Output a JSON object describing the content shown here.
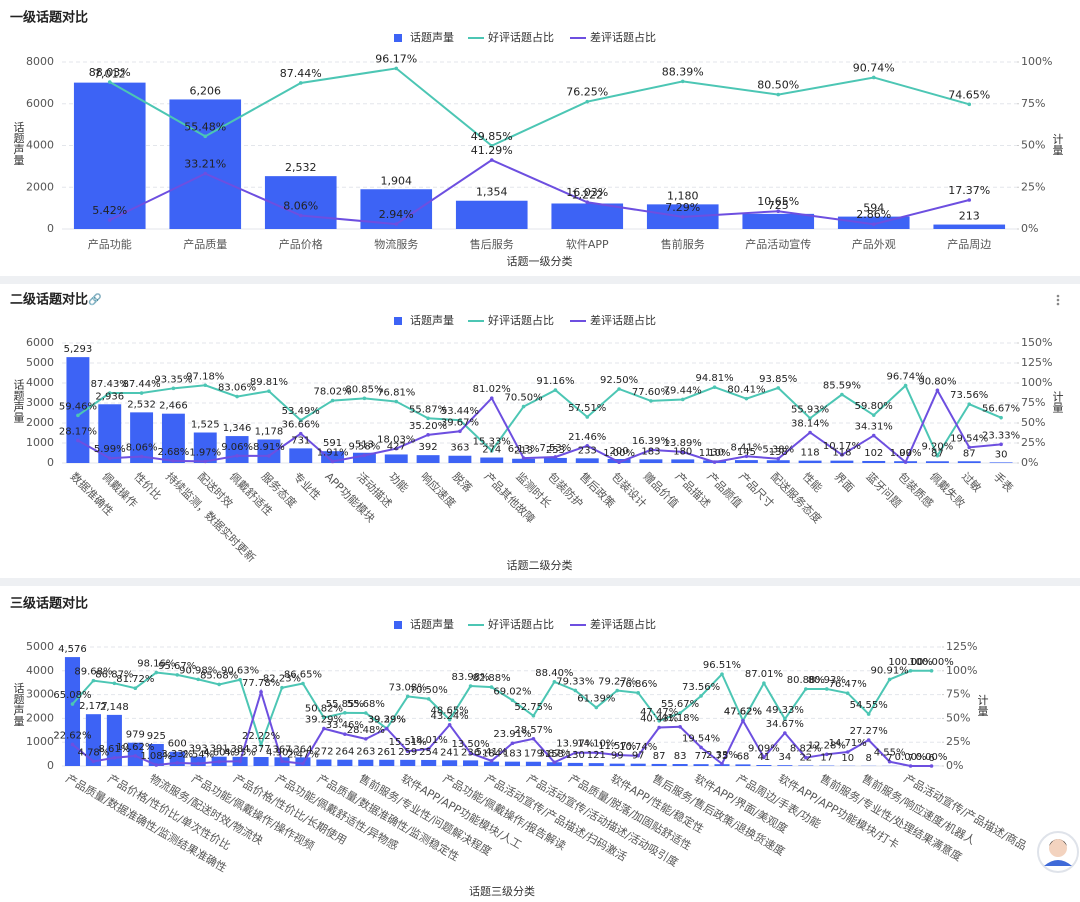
{
  "chart_data": [
    {
      "type": "combo",
      "title": "一级话题对比",
      "x_label": "话题一级分类",
      "y_label": "话题声量",
      "y2_label": "计量",
      "grid": true,
      "legend": "top",
      "categories": [
        "产品功能",
        "产品质量",
        "产品价格",
        "物流服务",
        "售后服务",
        "软件APP",
        "售前服务",
        "产品活动宣传",
        "产品外观",
        "产品周边"
      ],
      "series": [
        {
          "name": "话题声量",
          "type": "bar",
          "color": "#3d63f5",
          "values": [
            7012,
            6206,
            2532,
            1904,
            1354,
            1222,
            1180,
            725,
            594,
            213
          ],
          "value_labels": [
            "7,012",
            "6,206",
            "2,532",
            "1,904",
            "1,354",
            "1,222",
            "1,180",
            "725",
            "594",
            "213"
          ]
        },
        {
          "name": "好评话题占比",
          "type": "line",
          "axis": "y2",
          "color": "#4cc6b4",
          "values": [
            88.03,
            55.48,
            87.44,
            96.17,
            49.85,
            76.25,
            88.39,
            80.5,
            90.74,
            74.65
          ],
          "value_labels": [
            "88.03%",
            "55.48%",
            "87.44%",
            "96.17%",
            "49.85%",
            "76.25%",
            "88.39%",
            "80.50%",
            "90.74%",
            "74.65%"
          ]
        },
        {
          "name": "差评话题占比",
          "type": "line",
          "axis": "y2",
          "color": "#6d4fe0",
          "values": [
            5.42,
            33.21,
            8.06,
            2.94,
            41.29,
            16.03,
            7.29,
            10.65,
            2.86,
            17.37
          ],
          "value_labels": [
            "5.42%",
            "33.21%",
            "8.06%",
            "2.94%",
            "41.29%",
            "16.03%",
            "7.29%",
            "10.65%",
            "2.86%",
            "17.37%"
          ]
        }
      ],
      "ylim": [
        0,
        8000
      ],
      "yticks": [
        0,
        2000,
        4000,
        6000,
        8000
      ],
      "y2lim": [
        0,
        100
      ],
      "y2ticks": [
        {
          "value": 0,
          "label": "0%"
        },
        {
          "value": 25,
          "label": "25%"
        },
        {
          "value": 50,
          "label": "50%"
        },
        {
          "value": 75,
          "label": "75%"
        },
        {
          "value": 100,
          "label": "100%"
        }
      ]
    },
    {
      "type": "combo",
      "title": "二级话题对比",
      "x_label": "话题二级分类",
      "y_label": "话题声量",
      "y2_label": "计量",
      "grid": true,
      "legend": "top",
      "categories": [
        "数据准确性",
        "佩戴操作",
        "性价比",
        "持续监测，数据实时更新",
        "配送时效",
        "佩戴舒适性",
        "服务态度",
        "专业性",
        "APP功能模块",
        "活动描述",
        "功能",
        "响应速度",
        "脱落",
        "产品其他故障",
        "监测时长",
        "包装防护",
        "售后政策",
        "包装设计",
        "赠品价值",
        "产品描述",
        "产品颜值",
        "产品尺寸",
        "配送服务态度",
        "性能",
        "界面",
        "蓝牙问题",
        "包装质感",
        "佩戴失败",
        "过敏",
        "手表"
      ],
      "series": [
        {
          "name": "话题声量",
          "type": "bar",
          "color": "#3d63f5",
          "values": [
            5293,
            2936,
            2532,
            2466,
            1525,
            1346,
            1178,
            731,
            591,
            513,
            427,
            392,
            363,
            274,
            213,
            253,
            233,
            200,
            183,
            180,
            130,
            145,
            138,
            118,
            118,
            102,
            90,
            87,
            87,
            30
          ],
          "value_labels": [
            "5,293",
            "2,936",
            "2,532",
            "2,466",
            "1,525",
            "1,346",
            "1,178",
            "731",
            "591",
            "513",
            "427",
            "392",
            "363",
            "274",
            "213",
            "253",
            "233",
            "200",
            "183",
            "180",
            "130",
            "145",
            "138",
            "118",
            "118",
            "102",
            "90",
            "87",
            "87",
            "30"
          ]
        },
        {
          "name": "好评话题占比",
          "type": "line",
          "axis": "y2",
          "color": "#4cc6b4",
          "values": [
            59.46,
            87.43,
            87.44,
            93.35,
            97.18,
            83.06,
            89.81,
            53.49,
            78.02,
            80.85,
            76.81,
            55.87,
            53.44,
            15.33,
            70.5,
            91.16,
            57.51,
            92.5,
            77.6,
            79.44,
            94.81,
            80.41,
            93.85,
            55.93,
            85.59,
            59.8,
            96.74,
            9.2,
            73.56,
            56.67
          ],
          "value_labels": [
            "59.46%",
            "87.43%",
            "87.44%",
            "93.35%",
            "97.18%",
            "83.06%",
            "89.81%",
            "53.49%",
            "78.02%",
            "80.85%",
            "76.81%",
            "55.87%",
            "53.44%",
            "15.33%",
            "70.50%",
            "91.16%",
            "57.51%",
            "92.50%",
            "77.60%",
            "79.44%",
            "94.81%",
            "80.41%",
            "93.85%",
            "55.93%",
            "85.59%",
            "59.80%",
            "96.74%",
            "9.20%",
            "73.56%",
            "56.67%"
          ]
        },
        {
          "name": "差评话题占比",
          "type": "line",
          "axis": "y2",
          "color": "#6d4fe0",
          "values": [
            28.17,
            5.99,
            8.06,
            2.68,
            1.97,
            9.06,
            8.91,
            36.66,
            1.91,
            9.58,
            18.03,
            35.2,
            39.67,
            81.02,
            6.13,
            7.53,
            21.46,
            1.0,
            16.39,
            13.89,
            1.1,
            8.41,
            5.38,
            38.14,
            10.17,
            34.31,
            1.09,
            90.8,
            19.54,
            23.33
          ],
          "value_labels": [
            "28.17%",
            "5.99%",
            "8.06%",
            "2.68%",
            "1.97%",
            "9.06%",
            "8.91%",
            "36.66%",
            "1.91%",
            "9.58%",
            "18.03%",
            "35.20%",
            "39.67%",
            "81.02%",
            "6.13%",
            "7.53%",
            "21.46%",
            "1.00%",
            "16.39%",
            "13.89%",
            "1.10%",
            "8.41%",
            "5.38%",
            "38.14%",
            "10.17%",
            "34.31%",
            "1.09%",
            "90.80%",
            "19.54%",
            "23.33%"
          ]
        }
      ],
      "ylim": [
        0,
        6000
      ],
      "yticks": [
        0,
        1000,
        2000,
        3000,
        4000,
        5000,
        6000
      ],
      "y2lim": [
        0,
        150
      ],
      "y2ticks": [
        {
          "value": 0,
          "label": "0%"
        },
        {
          "value": 25,
          "label": "25%"
        },
        {
          "value": 50,
          "label": "50%"
        },
        {
          "value": 75,
          "label": "75%"
        },
        {
          "value": 100,
          "label": "100%"
        },
        {
          "value": 125,
          "label": "125%"
        },
        {
          "value": 150,
          "label": "150%"
        }
      ]
    },
    {
      "type": "combo",
      "title": "三级话题对比",
      "x_label": "话题三级分类",
      "y_label": "话题声量",
      "y2_label": "计量",
      "grid": true,
      "legend": "top",
      "categories": [
        "产品质量/数据准确性/监测结果准确性",
        null,
        "产品价格/性价比/单次性价比",
        null,
        "物流服务/配送时效/物流快",
        null,
        "产品功能/佩戴操作/操作视频",
        null,
        "产品价格/性价比/长期使用",
        null,
        "产品功能/佩戴舒适性/异物感",
        null,
        "产品质量/数据准确性/监测稳定性",
        null,
        "售前服务/专业性/问题解决程度",
        null,
        "软件APP/APP功能模块/人工",
        null,
        "产品功能/佩戴操作/报告解读",
        null,
        "产品活动宣传/产品描述/扫码激活",
        null,
        "产品活动宣传/活动描述/活动吸引度",
        null,
        "产品质量/脱落/加固贴舒适性",
        null,
        "软件APP/性能/稳定性",
        null,
        "售后服务/售后政策/退换货速度",
        null,
        "软件APP/界面/美观度",
        null,
        "产品周边/手表/功能",
        null,
        "软件APP/APP功能模块/打卡",
        null,
        "售前服务/专业性/处理结果满意度",
        null,
        "售前服务/响应速度/机器人",
        null,
        "产品活动宣传/产品描述/商品",
        null
      ],
      "series": [
        {
          "name": "话题声量",
          "type": "bar",
          "color": "#3d63f5",
          "values": [
            4576,
            2177,
            2148,
            979,
            925,
            600,
            393,
            391,
            384,
            377,
            367,
            364,
            272,
            264,
            263,
            261,
            259,
            254,
            241,
            236,
            184,
            183,
            179,
            158,
            130,
            121,
            99,
            97,
            87,
            83,
            77,
            75,
            68,
            41,
            34,
            22,
            17,
            10,
            8,
            7,
            7,
            6
          ],
          "value_labels": [
            "4,576",
            "2,177",
            "2,148",
            "979",
            "925",
            "600",
            "393",
            "391",
            "384",
            "377",
            "367",
            "364",
            "272",
            "264",
            "263",
            "261",
            "259",
            "254",
            "241",
            "236",
            "184",
            "183",
            "179",
            "158",
            "130",
            "121",
            "99",
            "97",
            "87",
            "83",
            "77",
            "75",
            "68",
            "41",
            "34",
            "22",
            "17",
            "10",
            "8",
            "7",
            "7",
            "6"
          ]
        },
        {
          "name": "好评话题占比",
          "type": "line",
          "axis": "y2",
          "color": "#4cc6b4",
          "values": [
            65.08,
            89.68,
            86.87,
            81.72,
            98.16,
            95.67,
            90.98,
            85.68,
            90.63,
            22.22,
            82.23,
            86.65,
            50.82,
            55.85,
            55.68,
            39.39,
            73.08,
            70.5,
            48.65,
            83.98,
            82.88,
            69.02,
            52.75,
            88.4,
            79.33,
            61.39,
            79.27,
            76.86,
            47.47,
            55.67,
            73.56,
            96.51,
            47.62,
            87.01,
            49.33,
            80.88,
            80.93,
            76.47,
            54.55,
            90.91,
            100.0,
            100.0
          ],
          "value_labels": [
            "65.08%",
            "89.68%",
            "86.87%",
            "81.72%",
            "98.16%",
            "95.67%",
            "90.98%",
            "85.68%",
            "90.63%",
            "22.22%",
            "82.23%",
            "86.65%",
            "50.82%",
            "55.85%",
            "55.68%",
            "39.39%",
            "73.08%",
            "70.50%",
            "48.65%",
            "83.98%",
            "82.88%",
            "69.02%",
            "52.75%",
            "88.40%",
            "79.33%",
            "61.39%",
            "79.27%",
            "76.86%",
            "47.47%",
            "55.67%",
            "73.56%",
            "96.51%",
            "47.62%",
            "87.01%",
            "49.33%",
            "80.88%",
            "80.93%",
            "76.47%",
            "54.55%",
            "90.91%",
            "100.00%",
            "100.00%"
          ]
        },
        {
          "name": "差评话题占比",
          "type": "line",
          "axis": "y2",
          "color": "#6d4fe0",
          "values": [
            22.62,
            4.78,
            8.61,
            10.62,
            1.08,
            3.33,
            2.54,
            4.6,
            4.95,
            77.78,
            4.9,
            2.47,
            39.29,
            33.46,
            28.48,
            39.29,
            15.51,
            18.01,
            43.24,
            13.5,
            5.41,
            23.91,
            28.57,
            3.87,
            13.97,
            14.1,
            11.57,
            10.74,
            40.43,
            41.18,
            19.54,
            2.33,
            47.62,
            9.09,
            34.67,
            8.82,
            12.28,
            14.71,
            27.27,
            4.55,
            0.0,
            0.0
          ],
          "value_labels": [
            "22.62%",
            "4.78%",
            "8.61%",
            "10.62%",
            "1.08%",
            "3.33%",
            "2.54%",
            "4.60%",
            "4.95%",
            "77.78%",
            "4.90%",
            "2.47%",
            "39.29%",
            "33.46%",
            "28.48%",
            "39.29%",
            "15.51%",
            "18.01%",
            "43.24%",
            "13.50%",
            "5.41%",
            "23.91%",
            "28.57%",
            "3.87%",
            "13.97%",
            "14.10%",
            "11.57%",
            "10.74%",
            "40.43%",
            "41.18%",
            "19.54%",
            "2.33%",
            "47.62%",
            "9.09%",
            "34.67%",
            "8.82%",
            "12.28%",
            "14.71%",
            "27.27%",
            "4.55%",
            "0.00%",
            "0.00%"
          ]
        }
      ],
      "ylim": [
        0,
        5000
      ],
      "yticks": [
        0,
        1000,
        2000,
        3000,
        4000,
        5000
      ],
      "y2lim": [
        0,
        125
      ],
      "y2ticks": [
        {
          "value": 0,
          "label": "0%"
        },
        {
          "value": 25,
          "label": "25%"
        },
        {
          "value": 50,
          "label": "50%"
        },
        {
          "value": 75,
          "label": "75%"
        },
        {
          "value": 100,
          "label": "100%"
        },
        {
          "value": 125,
          "label": "125%"
        }
      ]
    }
  ]
}
